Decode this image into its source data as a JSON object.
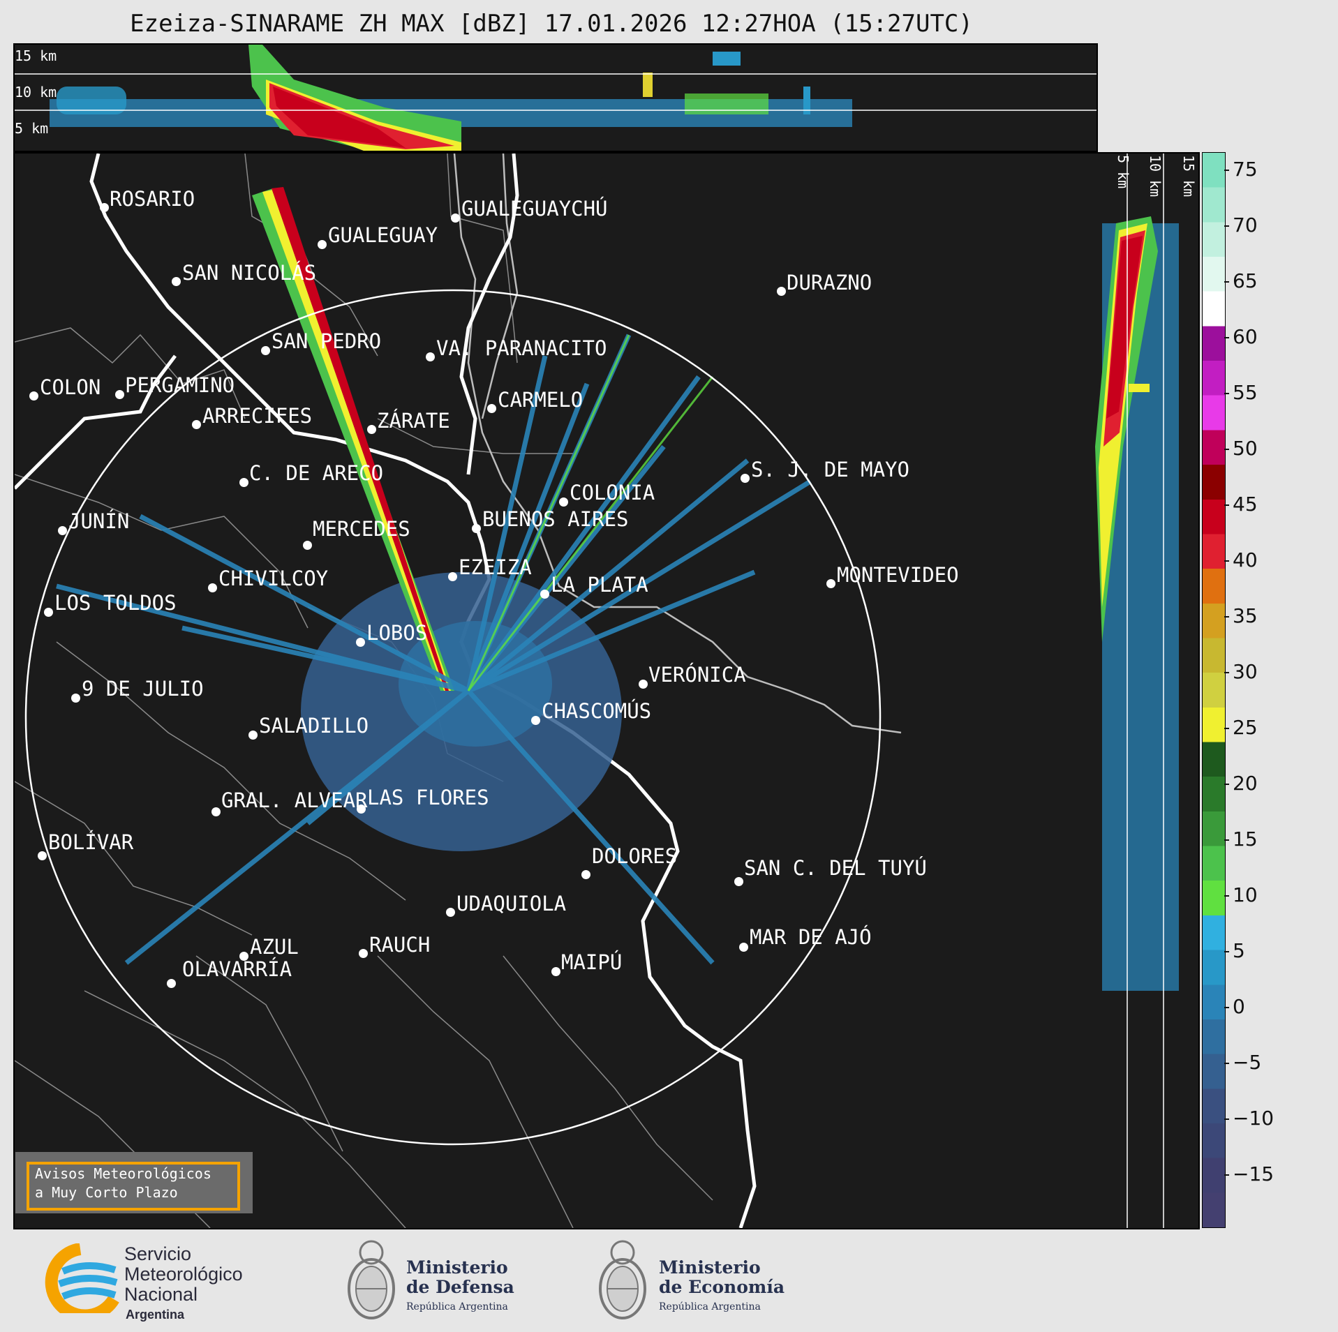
{
  "title": "Ezeiza-SINARAME ZH MAX [dBZ] 17.01.2026 12:27HOA (15:27UTC)",
  "height_labels": [
    "15 km",
    "10 km",
    "5 km"
  ],
  "side_height_labels": [
    "5 km",
    "10 km",
    "15 km"
  ],
  "colorbar": {
    "ticks": [
      "75",
      "70",
      "65",
      "60",
      "55",
      "50",
      "45",
      "40",
      "35",
      "30",
      "25",
      "20",
      "15",
      "10",
      "5",
      "0",
      "−5",
      "−10",
      "−15"
    ],
    "colors": [
      "#7fe0c0",
      "#a0e8cf",
      "#c2f0df",
      "#e2f8ef",
      "#ffffff",
      "#9c0f9c",
      "#c21ec2",
      "#e83ae8",
      "#c0005a",
      "#8b0000",
      "#c8001c",
      "#e02030",
      "#e07010",
      "#d4a020",
      "#c8b830",
      "#d0d040",
      "#f0f030",
      "#1e5a1e",
      "#2a7a2a",
      "#3a9a3a",
      "#4cc24c",
      "#60e040",
      "#30b0e0",
      "#2898c8",
      "#2a84b8",
      "#2f6fa0",
      "#356090",
      "#3a5080",
      "#3c4878",
      "#404070",
      "#444070"
    ]
  },
  "cities": [
    {
      "name": "ROSARIO"
    },
    {
      "name": "GUALEGUAYCHÚ"
    },
    {
      "name": "GUALEGUAY"
    },
    {
      "name": "SAN NICOLÁS"
    },
    {
      "name": "DURAZNO"
    },
    {
      "name": "SAN PEDRO"
    },
    {
      "name": "VA. PARANACITO"
    },
    {
      "name": "COLON"
    },
    {
      "name": "PERGAMINO"
    },
    {
      "name": "CARMELO"
    },
    {
      "name": "ARRECIFES"
    },
    {
      "name": "ZÁRATE"
    },
    {
      "name": "S. J. DE MAYO"
    },
    {
      "name": "C. DE ARECO"
    },
    {
      "name": "COLONIA"
    },
    {
      "name": "JUNÍN"
    },
    {
      "name": "BUENOS AIRES"
    },
    {
      "name": "MERCEDES"
    },
    {
      "name": "EZEIZA"
    },
    {
      "name": "MONTEVIDEO"
    },
    {
      "name": "CHIVILCOY"
    },
    {
      "name": "LA PLATA"
    },
    {
      "name": "LOS TOLDOS"
    },
    {
      "name": "LOBOS"
    },
    {
      "name": "VERÓNICA"
    },
    {
      "name": "9 DE JULIO"
    },
    {
      "name": "CHASCOMÚS"
    },
    {
      "name": "SALADILLO"
    },
    {
      "name": "GRAL. ALVEAR"
    },
    {
      "name": "LAS FLORES"
    },
    {
      "name": "BOLÍVAR"
    },
    {
      "name": "DOLORES"
    },
    {
      "name": "SAN C. DEL TUYÚ"
    },
    {
      "name": "UDAQUIOLA"
    },
    {
      "name": "MAR DE AJÓ"
    },
    {
      "name": "AZUL"
    },
    {
      "name": "RAUCH"
    },
    {
      "name": "OLAVARRÍA"
    },
    {
      "name": "MAIPÚ"
    }
  ],
  "avisos": {
    "line1": "Avisos Meteorológicos",
    "line2": "a Muy Corto Plazo"
  },
  "logos": {
    "smn": {
      "line1": "Servicio",
      "line2": "Meteorológico",
      "line3": "Nacional",
      "line4": "Argentina"
    },
    "defensa": {
      "line1": "Ministerio",
      "line2": "de Defensa",
      "line3": "República Argentina"
    },
    "economia": {
      "line1": "Ministerio",
      "line2": "de Economía",
      "line3": "República Argentina"
    }
  }
}
